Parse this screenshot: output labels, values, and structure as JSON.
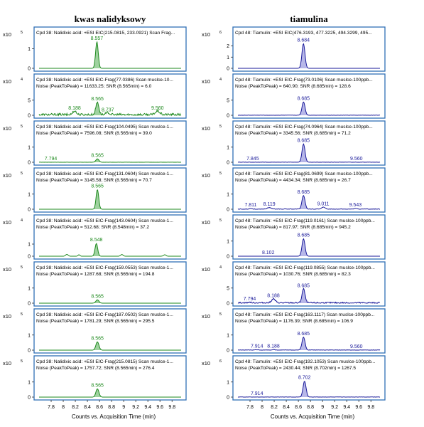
{
  "colors": {
    "green_line": "#1e8a1e",
    "green_fill": "#9fd29f",
    "blue_line": "#1a1a9a",
    "blue_fill": "#b7b7e8",
    "frame": "#2f6fb5",
    "axis": "#333333"
  },
  "columns": [
    {
      "title": "kwas nalidyksowy",
      "xlabel": "Counts vs. Acquisition Time (min)",
      "xlim": [
        7.6,
        9.95
      ],
      "ticks": [
        "7.8",
        "8",
        "8.2",
        "8.4",
        "8.6",
        "8.8",
        "9",
        "9.2",
        "9.4",
        "9.6",
        "9.8"
      ]
    },
    {
      "title": "tiamulina",
      "xlabel": "Counts vs. Acquisition Time (min)",
      "xlim": [
        7.6,
        9.95
      ],
      "ticks": [
        "7.8",
        "8",
        "8.2",
        "8.4",
        "8.6",
        "8.8",
        "9",
        "9.2",
        "9.4",
        "9.6",
        "9.8"
      ]
    }
  ],
  "chart_data": [
    {
      "type": "line",
      "column": 0,
      "row": 0,
      "scale_label": "x10",
      "exponent": "5",
      "header1": "Cpd 38: Nalidixic acid: +ESI EIC(215.0815, 233.0921) Scan Frag...",
      "header2": "",
      "y_ticks": [
        "0",
        "1"
      ],
      "ylim": [
        0,
        1.6
      ],
      "peaks": [
        {
          "x": 8.557,
          "h": 1.35,
          "w": 0.022,
          "label": "8.557",
          "fill": true
        }
      ],
      "baseline_noise": 0.0
    },
    {
      "type": "line",
      "column": 0,
      "row": 1,
      "scale_label": "x10",
      "exponent": "4",
      "header1": "Cpd 38: Nalidixic acid: +ESI EIC-Frag(77.0386) Scan muslce-10...",
      "header2": "Noise (PeakToPeak) = 11633.25; SNR (8.565min) = 6.0",
      "y_ticks": [
        "0",
        "5"
      ],
      "ylim": [
        0,
        8
      ],
      "peaks": [
        {
          "x": 8.565,
          "h": 4.2,
          "w": 0.025,
          "label": "8.565",
          "fill": true
        },
        {
          "x": 8.188,
          "h": 1.2,
          "w": 0.03,
          "label": "8.188",
          "fill": false
        },
        {
          "x": 8.737,
          "h": 0.6,
          "w": 0.03,
          "label": "8.737",
          "fill": false
        },
        {
          "x": 9.56,
          "h": 1.2,
          "w": 0.035,
          "label": "9.560",
          "fill": false
        }
      ],
      "baseline_noise": 0.9
    },
    {
      "type": "line",
      "column": 0,
      "row": 2,
      "scale_label": "x10",
      "exponent": "5",
      "header1": "Cpd 38: Nalidixic acid: +ESI EIC-Frag(104.0495) Scan muslce-1...",
      "header2": "Noise (PeakToPeak) = 7596.08; SNR (8.565min) = 39.0",
      "y_ticks": [
        "0",
        "1"
      ],
      "ylim": [
        0,
        1.6
      ],
      "peaks": [
        {
          "x": 8.565,
          "h": 0.22,
          "w": 0.025,
          "label": "8.565",
          "fill": true
        },
        {
          "x": 7.794,
          "h": 0.0,
          "w": 0.02,
          "label": "7.794",
          "fill": false
        }
      ],
      "baseline_noise": 0.01
    },
    {
      "type": "line",
      "column": 0,
      "row": 3,
      "scale_label": "x10",
      "exponent": "5",
      "header1": "Cpd 38: Nalidixic acid: +ESI EIC-Frag(131.0604) Scan muslce-1...",
      "header2": "Noise (PeakToPeak) = 3145.58; SNR (8.565min) = 70.7",
      "y_ticks": [
        "0",
        "1"
      ],
      "ylim": [
        0,
        1.6
      ],
      "peaks": [
        {
          "x": 8.565,
          "h": 1.3,
          "w": 0.022,
          "label": "8.565",
          "fill": true
        }
      ],
      "baseline_noise": 0.0
    },
    {
      "type": "line",
      "column": 0,
      "row": 4,
      "scale_label": "x10",
      "exponent": "4",
      "header1": "Cpd 38: Nalidixic acid: +ESI EIC-Frag(143.0604) Scan muslce-1...",
      "header2": "Noise (PeakToPeak) = 512.68; SNR (8.548min) = 37.2",
      "y_ticks": [
        "0",
        "1"
      ],
      "ylim": [
        0,
        2.0
      ],
      "peaks": [
        {
          "x": 8.548,
          "h": 1.05,
          "w": 0.022,
          "label": "8.548",
          "fill": true
        },
        {
          "x": 8.06,
          "h": 0.15,
          "w": 0.02,
          "label": "",
          "fill": false
        },
        {
          "x": 8.26,
          "h": 0.12,
          "w": 0.015,
          "label": "",
          "fill": false
        },
        {
          "x": 8.97,
          "h": 0.14,
          "w": 0.02,
          "label": "",
          "fill": false
        },
        {
          "x": 9.68,
          "h": 0.12,
          "w": 0.02,
          "label": "",
          "fill": false
        }
      ],
      "baseline_noise": 0.0
    },
    {
      "type": "line",
      "column": 0,
      "row": 5,
      "scale_label": "x10",
      "exponent": "5",
      "header1": "Cpd 38: Nalidixic acid: +ESI EIC-Frag(159.0553) Scan muslce-1...",
      "header2": "Noise (PeakToPeak) = 1287.68; SNR (8.565min) = 194.8",
      "y_ticks": [
        "0",
        "1"
      ],
      "ylim": [
        0,
        1.6
      ],
      "peaks": [
        {
          "x": 8.565,
          "h": 0.22,
          "w": 0.025,
          "label": "8.565",
          "fill": true
        }
      ],
      "baseline_noise": 0.0
    },
    {
      "type": "line",
      "column": 0,
      "row": 6,
      "scale_label": "x10",
      "exponent": "5",
      "header1": "Cpd 38: Nalidixic acid: +ESI EIC-Frag(187.0502) Scan muslce-1...",
      "header2": "Noise (PeakToPeak) = 1781.29; SNR (8.565min) = 295.5",
      "y_ticks": [
        "0",
        "1"
      ],
      "ylim": [
        0,
        1.6
      ],
      "peaks": [
        {
          "x": 8.565,
          "h": 0.55,
          "w": 0.025,
          "label": "8.565",
          "fill": true
        }
      ],
      "baseline_noise": 0.0
    },
    {
      "type": "line",
      "column": 0,
      "row": 7,
      "scale_label": "x10",
      "exponent": "5",
      "header1": "Cpd 38: Nalidixic acid: +ESI EIC-Frag(215.0815) Scan muslce-1...",
      "header2": "Noise (PeakToPeak) = 1757.72; SNR (8.565min) = 276.4",
      "y_ticks": [
        "0",
        "1"
      ],
      "ylim": [
        0,
        1.6
      ],
      "peaks": [
        {
          "x": 8.565,
          "h": 0.55,
          "w": 0.025,
          "label": "8.565",
          "fill": true
        }
      ],
      "baseline_noise": 0.0
    },
    {
      "type": "line",
      "column": 1,
      "row": 0,
      "scale_label": "x10",
      "exponent": "6",
      "header1": "Cpd 48: Tiamulin: +ESI EIC(476.3193, 477.3225, 494.3299, 495...",
      "header2": "",
      "y_ticks": [
        "0",
        "1",
        "2"
      ],
      "ylim": [
        0,
        2.8
      ],
      "peaks": [
        {
          "x": 8.684,
          "h": 2.2,
          "w": 0.025,
          "label": "8.684",
          "fill": true
        }
      ],
      "baseline_noise": 0.0
    },
    {
      "type": "line",
      "column": 1,
      "row": 1,
      "scale_label": "x10",
      "exponent": "4",
      "header1": "Cpd 48: Tiamulin: +ESI EIC-Frag(73.0106) Scan muslce-100ppb...",
      "header2": "Noise (PeakToPeak) = 640.90; SNR (8.685min) = 128.6",
      "y_ticks": [
        "0",
        "5"
      ],
      "ylim": [
        0,
        8
      ],
      "peaks": [
        {
          "x": 8.685,
          "h": 4.4,
          "w": 0.025,
          "label": "8.685",
          "fill": true
        }
      ],
      "baseline_noise": 0.1
    },
    {
      "type": "line",
      "column": 1,
      "row": 2,
      "scale_label": "x10",
      "exponent": "5",
      "header1": "Cpd 48: Tiamulin: +ESI EIC-Frag(74.0964) Scan muslce-100ppb...",
      "header2": "Noise (PeakToPeak) = 3345.56; SNR (8.685min) = 71.2",
      "y_ticks": [
        "0",
        "1"
      ],
      "ylim": [
        0,
        1.6
      ],
      "peaks": [
        {
          "x": 8.685,
          "h": 1.2,
          "w": 0.025,
          "label": "8.685",
          "fill": true
        },
        {
          "x": 7.845,
          "h": 0.0,
          "w": 0.02,
          "label": "7.845",
          "fill": false
        },
        {
          "x": 9.56,
          "h": 0.0,
          "w": 0.02,
          "label": "9.560",
          "fill": false
        }
      ],
      "baseline_noise": 0.02
    },
    {
      "type": "line",
      "column": 1,
      "row": 3,
      "scale_label": "x10",
      "exponent": "5",
      "header1": "Cpd 48: Tiamulin: +ESI EIC-Frag(81.0699) Scan muslce-100ppb...",
      "header2": "Noise (PeakToPeak) = 4434.34; SNR (8.685min) = 26.7",
      "y_ticks": [
        "0",
        "1"
      ],
      "ylim": [
        0,
        1.6
      ],
      "peaks": [
        {
          "x": 8.685,
          "h": 0.9,
          "w": 0.025,
          "label": "8.685",
          "fill": true
        },
        {
          "x": 7.811,
          "h": 0.05,
          "w": 0.02,
          "label": "7.811",
          "fill": false
        },
        {
          "x": 8.119,
          "h": 0.1,
          "w": 0.03,
          "label": "8.119",
          "fill": false
        },
        {
          "x": 9.011,
          "h": 0.12,
          "w": 0.03,
          "label": "9.011",
          "fill": false
        },
        {
          "x": 9.543,
          "h": 0.05,
          "w": 0.02,
          "label": "9.543",
          "fill": false
        }
      ],
      "baseline_noise": 0.04
    },
    {
      "type": "line",
      "column": 1,
      "row": 4,
      "scale_label": "x10",
      "exponent": "5",
      "header1": "Cpd 48: Tiamulin: +ESI EIC-Frag(119.0161) Scan muslce-100ppb...",
      "header2": "Noise (PeakToPeak) = 817.97; SNR (8.685min) = 945.2",
      "y_ticks": [
        "0",
        "1"
      ],
      "ylim": [
        0,
        1.6
      ],
      "peaks": [
        {
          "x": 8.685,
          "h": 1.15,
          "w": 0.025,
          "label": "8.685",
          "fill": true
        },
        {
          "x": 8.102,
          "h": 0.0,
          "w": 0.02,
          "label": "8.102",
          "fill": false
        }
      ],
      "baseline_noise": 0.0
    },
    {
      "type": "line",
      "column": 1,
      "row": 5,
      "scale_label": "x10",
      "exponent": "4",
      "header1": "Cpd 48: Tiamulin: +ESI EIC-Frag(119.0855) Scan muslce-100ppb...",
      "header2": "Noise (PeakToPeak) = 1030.76; SNR (8.685min) = 82.3",
      "y_ticks": [
        "0",
        "5"
      ],
      "ylim": [
        0,
        8
      ],
      "peaks": [
        {
          "x": 8.685,
          "h": 4.6,
          "w": 0.025,
          "label": "8.685",
          "fill": true
        },
        {
          "x": 8.188,
          "h": 1.3,
          "w": 0.03,
          "label": "8.188",
          "fill": false
        },
        {
          "x": 7.794,
          "h": 0.2,
          "w": 0.02,
          "label": "7.794",
          "fill": false
        }
      ],
      "baseline_noise": 0.5
    },
    {
      "type": "line",
      "column": 1,
      "row": 6,
      "scale_label": "x10",
      "exponent": "5",
      "header1": "Cpd 48: Tiamulin: +ESI EIC-Frag(163.1117) Scan muslce-100ppb...",
      "header2": "Noise (PeakToPeak) = 1176.39; SNR (8.685min) = 106.9",
      "y_ticks": [
        "0",
        "1"
      ],
      "ylim": [
        0,
        1.6
      ],
      "peaks": [
        {
          "x": 8.685,
          "h": 0.85,
          "w": 0.025,
          "label": "8.685",
          "fill": true
        },
        {
          "x": 7.914,
          "h": 0.02,
          "w": 0.02,
          "label": "7.914",
          "fill": false
        },
        {
          "x": 8.188,
          "h": 0.03,
          "w": 0.02,
          "label": "8.188",
          "fill": false
        },
        {
          "x": 9.56,
          "h": 0.0,
          "w": 0.02,
          "label": "9.560",
          "fill": false
        }
      ],
      "baseline_noise": 0.03
    },
    {
      "type": "line",
      "column": 1,
      "row": 7,
      "scale_label": "x10",
      "exponent": "6",
      "header1": "Cpd 48: Tiamulin: +ESI EIC-Frag(192.1053) Scan muslce-100ppb...",
      "header2": "Noise (PeakToPeak) = 2430.44; SNR (8.702min) = 1267.5",
      "y_ticks": [
        "0",
        "1"
      ],
      "ylim": [
        0,
        1.6
      ],
      "peaks": [
        {
          "x": 8.702,
          "h": 1.05,
          "w": 0.025,
          "label": "8.702",
          "fill": true
        },
        {
          "x": 7.914,
          "h": 0.0,
          "w": 0.02,
          "label": "7.914",
          "fill": false
        }
      ],
      "baseline_noise": 0.02
    }
  ]
}
